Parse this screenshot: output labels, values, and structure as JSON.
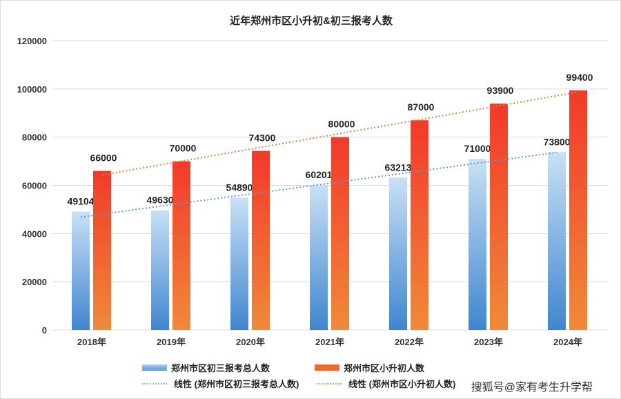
{
  "chart_data": {
    "type": "bar",
    "title": "近年郑州市区小升初&初三报考人数",
    "categories": [
      "2018年",
      "2019年",
      "2020年",
      "2021年",
      "2022年",
      "2023年",
      "2024年"
    ],
    "series": [
      {
        "name": "郑州市区初三报考总人数",
        "values": [
          49104,
          49630,
          54890,
          60201,
          63213,
          71000,
          73800
        ],
        "color": "#5b9bd5"
      },
      {
        "name": "郑州市区小升初人数",
        "values": [
          66000,
          70000,
          74300,
          80000,
          87000,
          93900,
          99400
        ],
        "color": "#ed6a2c"
      }
    ],
    "trendlines": [
      {
        "name": "线性 (郑州市区初三报考总人数)",
        "type": "linear",
        "color": "#5b9bd5"
      },
      {
        "name": "线性 (郑州市区小升初人数)",
        "type": "linear",
        "color": "#e07b39"
      }
    ],
    "ylim": [
      0,
      120000
    ],
    "yticks": [
      0,
      20000,
      40000,
      60000,
      80000,
      100000,
      120000
    ],
    "grid": true,
    "legend": "bottom",
    "xlabel": "",
    "ylabel": ""
  },
  "watermark": "搜狐号@家有考生升学帮"
}
